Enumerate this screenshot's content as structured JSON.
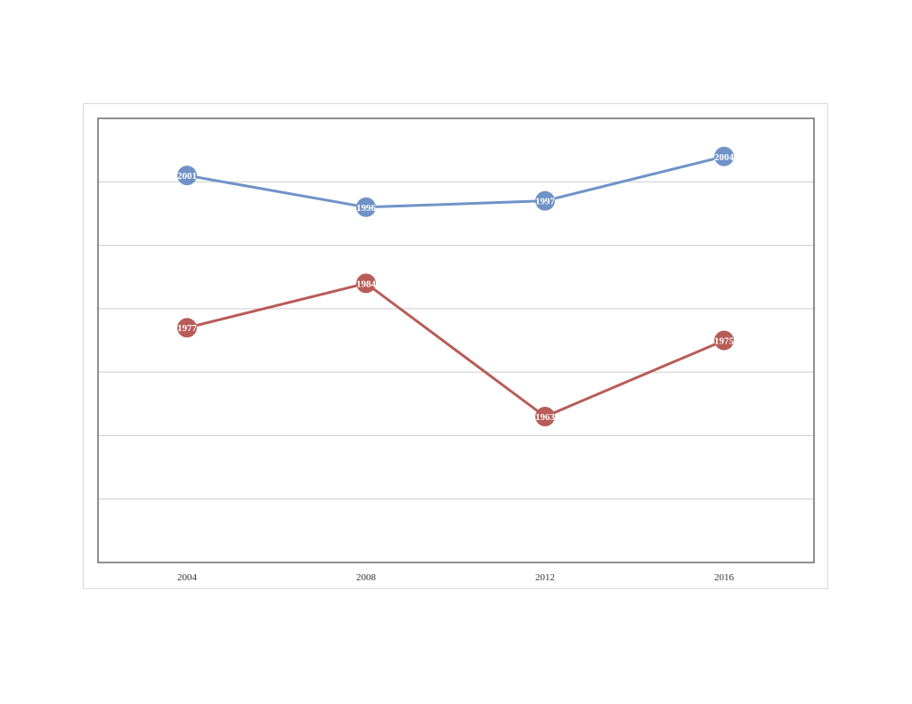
{
  "chart_data": {
    "type": "line",
    "title": "",
    "xlabel": "",
    "ylabel": "",
    "categories": [
      "2004",
      "2008",
      "2012",
      "2016"
    ],
    "ylim": [
      1940,
      2010
    ],
    "grid": true,
    "legend": "none",
    "series": [
      {
        "values": [
          2001,
          1996,
          1997,
          2004
        ],
        "color": "#6f93c7"
      },
      {
        "values": [
          1977,
          1984,
          1963,
          1975
        ],
        "color": "#b85c57"
      }
    ]
  }
}
